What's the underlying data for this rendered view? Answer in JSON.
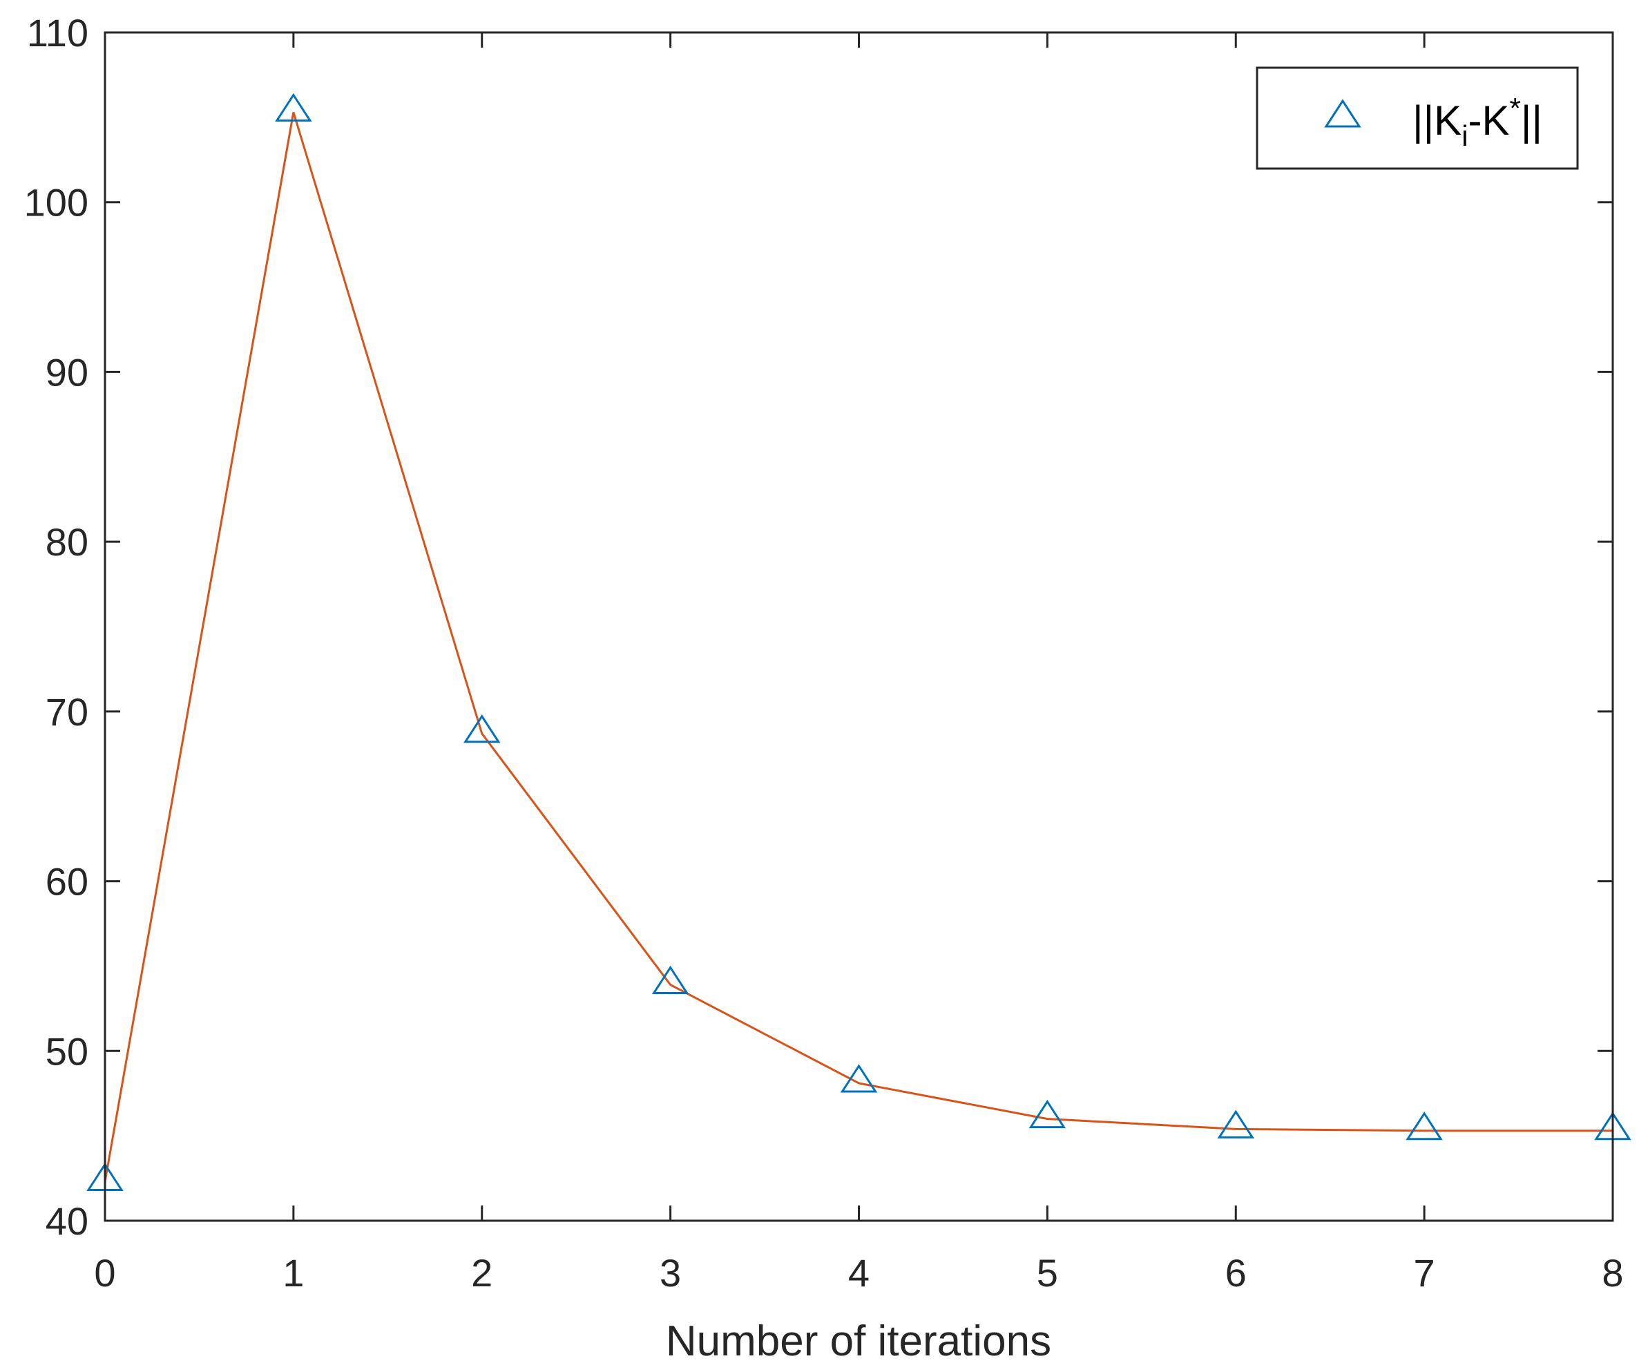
{
  "chart_data": {
    "type": "line",
    "title": "",
    "xlabel": "Number of iterations",
    "ylabel": "",
    "x": [
      0,
      1,
      2,
      3,
      4,
      5,
      6,
      7,
      8
    ],
    "xlim": [
      0,
      8
    ],
    "ylim": [
      40,
      110
    ],
    "xticks": [
      "0",
      "1",
      "2",
      "3",
      "4",
      "5",
      "6",
      "7",
      "8"
    ],
    "yticks": [
      "40",
      "50",
      "60",
      "70",
      "80",
      "90",
      "100",
      "110"
    ],
    "grid": false,
    "legend_position": "top-right",
    "legend": {
      "base1": "||K",
      "sub": "i",
      "base2": "-K",
      "sup": "*",
      "base3": "||"
    },
    "series": [
      {
        "name": "||Ki-K*||",
        "marker": "triangle",
        "values": [
          42.3,
          105.3,
          68.7,
          53.9,
          48.1,
          46.0,
          45.4,
          45.3,
          45.3
        ],
        "marker_color": "#0072BD",
        "line_color": "#D95319"
      }
    ]
  }
}
